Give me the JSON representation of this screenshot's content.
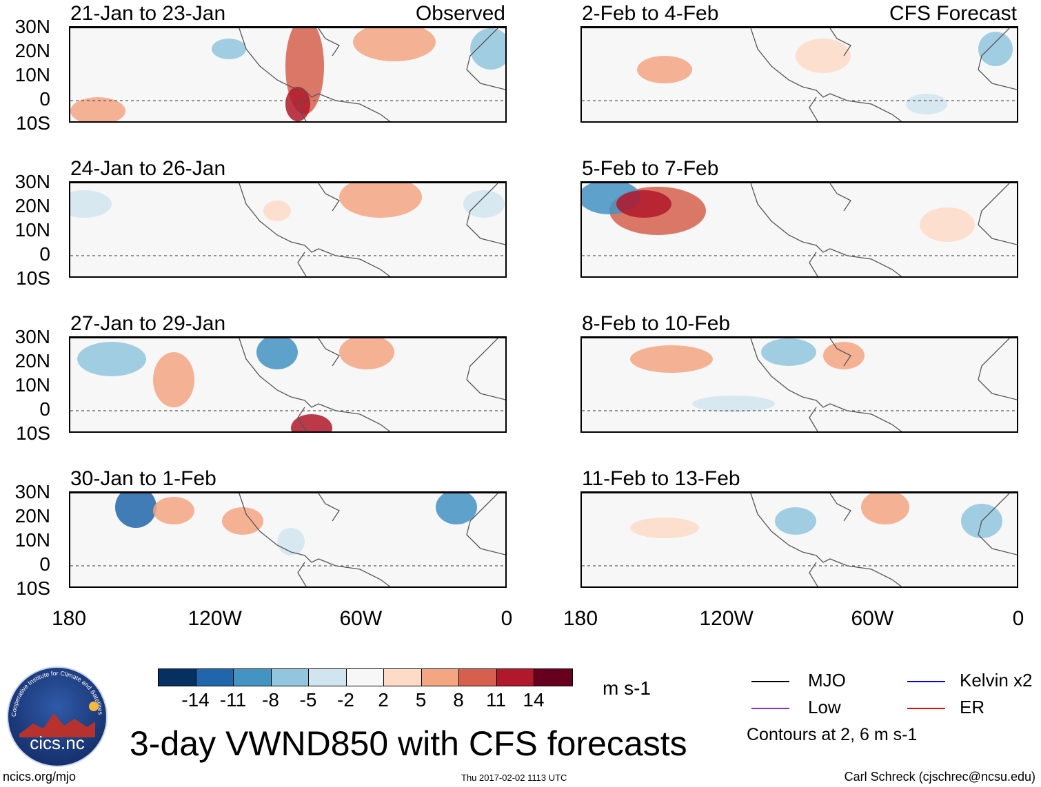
{
  "panels": [
    {
      "title": "21-Jan to 23-Jan",
      "source": "Observed"
    },
    {
      "title": "2-Feb to 4-Feb",
      "source": "CFS Forecast"
    },
    {
      "title": "24-Jan to 26-Jan",
      "source": ""
    },
    {
      "title": "5-Feb to 7-Feb",
      "source": ""
    },
    {
      "title": "27-Jan to 29-Jan",
      "source": ""
    },
    {
      "title": "8-Feb to 10-Feb",
      "source": ""
    },
    {
      "title": "30-Jan to 1-Feb",
      "source": ""
    },
    {
      "title": "11-Feb to 13-Feb",
      "source": ""
    }
  ],
  "lat_labels": [
    "30N",
    "20N",
    "10N",
    "0",
    "10S"
  ],
  "lon_labels": [
    "180",
    "120W",
    "60W",
    "0"
  ],
  "colorbar": {
    "labels": [
      "-14",
      "-11",
      "-8",
      "-5",
      "-2",
      "2",
      "5",
      "8",
      "11",
      "14"
    ],
    "colors": [
      "#053061",
      "#2166ac",
      "#4393c3",
      "#92c5de",
      "#d1e5f0",
      "#f7f7f7",
      "#fddbc7",
      "#f4a582",
      "#d6604d",
      "#b2182b",
      "#67001f"
    ],
    "units": "m s-1"
  },
  "title": "3-day VWND850 with CFS forecasts",
  "legend": [
    {
      "label": "MJO",
      "color": "#000000"
    },
    {
      "label": "Kelvin x2",
      "color": "#0000ff"
    },
    {
      "label": "Low",
      "color": "#8a2be2"
    },
    {
      "label": "ER",
      "color": "#ff0000"
    }
  ],
  "contour_note": "Contours at 2, 6 m s-1",
  "logo_text": "cics.nc",
  "logo_ring_text": "Cooperative Institute for Climate and Satellites",
  "footer": {
    "url": "ncics.org/mjo",
    "timestamp": "Thu 2017-02-02 1113 UTC",
    "author": "Carl Schreck (cjschrec@ncsu.edu)"
  }
}
